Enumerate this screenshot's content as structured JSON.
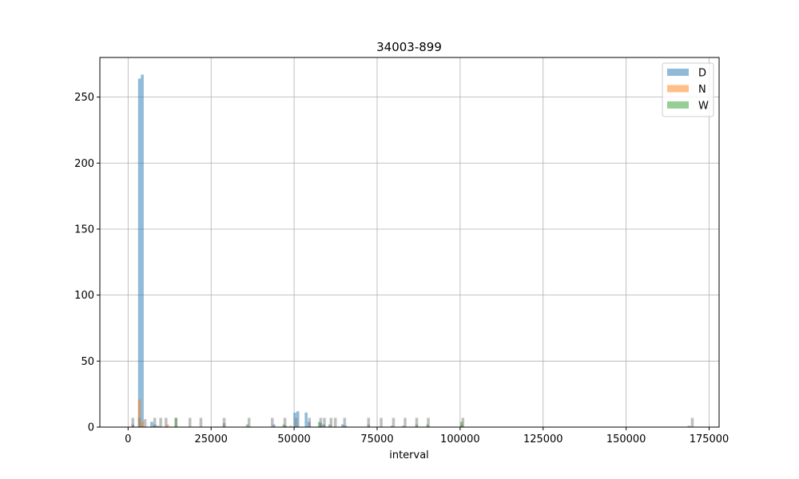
{
  "chart_data": {
    "type": "bar",
    "title": "34003-899",
    "xlabel": "interval",
    "ylabel": "",
    "xlim": [
      -8500,
      178000
    ],
    "ylim": [
      0,
      280
    ],
    "xticks": [
      0,
      25000,
      50000,
      75000,
      100000,
      125000,
      150000,
      175000
    ],
    "yticks": [
      0,
      50,
      100,
      150,
      200,
      250
    ],
    "grid": true,
    "legend_position": "top-right",
    "bin_width": 850,
    "colors": {
      "D": "#1f77b4",
      "N": "#ff7f0e",
      "W": "#2ca02c"
    },
    "series": [
      {
        "name": "D",
        "bins": [
          [
            3000,
            264
          ],
          [
            3850,
            267
          ],
          [
            1000,
            2
          ],
          [
            6700,
            4
          ],
          [
            7600,
            2
          ],
          [
            8500,
            1
          ],
          [
            43500,
            2
          ],
          [
            47000,
            1
          ],
          [
            49800,
            11
          ],
          [
            50700,
            12
          ],
          [
            53200,
            11
          ],
          [
            54100,
            4
          ],
          [
            57600,
            3
          ],
          [
            58500,
            2
          ],
          [
            64200,
            2
          ],
          [
            65100,
            1
          ],
          [
            100100,
            1
          ]
        ]
      },
      {
        "name": "N",
        "bins": [
          [
            3000,
            21
          ],
          [
            3850,
            4
          ],
          [
            1000,
            1
          ],
          [
            11500,
            2
          ],
          [
            48500,
            1
          ],
          [
            57600,
            1
          ],
          [
            100100,
            2
          ]
        ]
      },
      {
        "name": "W",
        "bins": [
          [
            14000,
            7
          ],
          [
            28500,
            3
          ],
          [
            35500,
            2
          ],
          [
            46500,
            2
          ],
          [
            57200,
            4
          ],
          [
            60300,
            2
          ],
          [
            72000,
            2
          ],
          [
            79000,
            1
          ],
          [
            82500,
            1
          ],
          [
            86500,
            2
          ],
          [
            89800,
            2
          ],
          [
            100000,
            4
          ],
          [
            168500,
            1
          ]
        ]
      },
      {
        "name": "",
        "bins": [
          [
            1000,
            7
          ],
          [
            3000,
            7
          ],
          [
            4700,
            6
          ],
          [
            7600,
            7
          ],
          [
            9400,
            7
          ],
          [
            11000,
            7
          ],
          [
            14000,
            7
          ],
          [
            18200,
            7
          ],
          [
            21500,
            7
          ],
          [
            28500,
            7
          ],
          [
            36000,
            7
          ],
          [
            43000,
            7
          ],
          [
            46800,
            7
          ],
          [
            50200,
            7
          ],
          [
            54200,
            7
          ],
          [
            57600,
            7
          ],
          [
            58700,
            7
          ],
          [
            60700,
            7
          ],
          [
            62000,
            7
          ],
          [
            64800,
            7
          ],
          [
            72000,
            7
          ],
          [
            75800,
            7
          ],
          [
            79500,
            7
          ],
          [
            83000,
            7
          ],
          [
            86500,
            7
          ],
          [
            90000,
            7
          ],
          [
            100400,
            7
          ],
          [
            169500,
            7
          ]
        ]
      }
    ]
  }
}
